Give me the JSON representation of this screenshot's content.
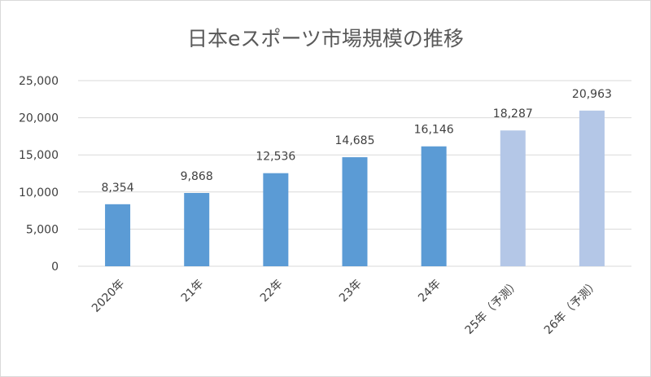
{
  "chart_data": {
    "type": "bar",
    "title": "日本eスポーツ市場規模の推移",
    "xlabel": "",
    "ylabel": "",
    "categories": [
      "2020年",
      "21年",
      "22年",
      "23年",
      "24年",
      "25年（予測）",
      "26年（予測）"
    ],
    "values": [
      8354,
      9868,
      12536,
      14685,
      16146,
      18287,
      20963
    ],
    "data_labels": [
      "8,354",
      "9,868",
      "12,536",
      "14,685",
      "16,146",
      "18,287",
      "20,963"
    ],
    "forecast": [
      false,
      false,
      false,
      false,
      false,
      true,
      true
    ],
    "ylim": [
      0,
      25000
    ],
    "yticks": [
      0,
      5000,
      10000,
      15000,
      20000,
      25000
    ],
    "ytick_labels": [
      "0",
      "5,000",
      "10,000",
      "15,000",
      "20,000",
      "25,000"
    ],
    "grid": true,
    "legend": "none",
    "colors": {
      "actual": "#5b9bd5",
      "forecast": "#b4c7e7",
      "grid": "#d9d9d9"
    }
  }
}
